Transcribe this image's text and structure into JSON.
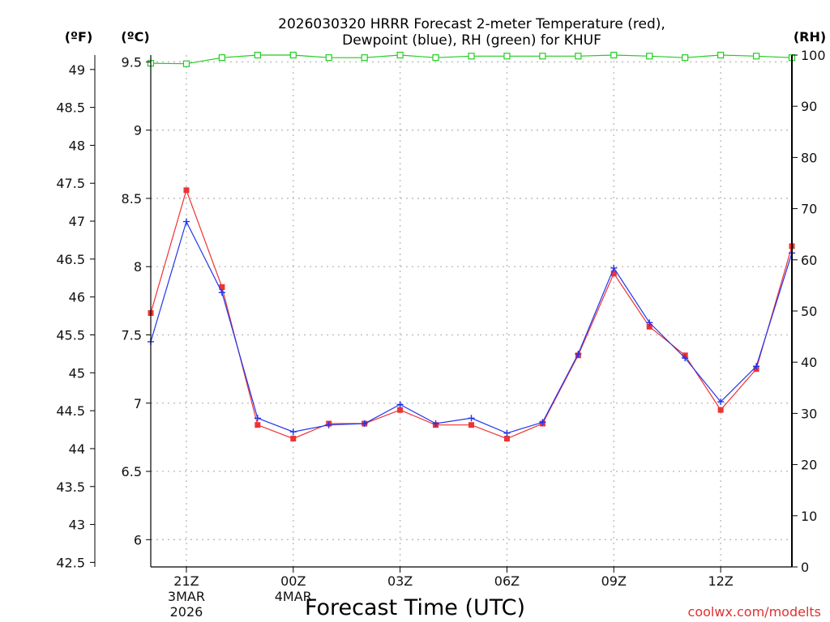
{
  "chart_data": {
    "type": "line",
    "title_line1": "2026030320 HRRR Forecast 2-meter Temperature (red),",
    "title_line2": "Dewpoint (blue), RH (green) for KHUF",
    "xlabel": "Forecast Time (UTC)",
    "credit": "coolwx.com/modelts",
    "unit_f": "(ºF)",
    "unit_c": "(ºC)",
    "unit_rh": "(RH)",
    "hours": [
      0,
      1,
      2,
      3,
      4,
      5,
      6,
      7,
      8,
      9,
      10,
      11,
      12,
      13,
      14,
      15,
      16,
      17,
      18
    ],
    "x_ticks": [
      {
        "h": 1,
        "label": "21Z",
        "sub1": "3MAR",
        "sub2": "2026"
      },
      {
        "h": 4,
        "label": "00Z",
        "sub1": "4MAR",
        "sub2": ""
      },
      {
        "h": 7,
        "label": "03Z",
        "sub1": "",
        "sub2": ""
      },
      {
        "h": 10,
        "label": "06Z",
        "sub1": "",
        "sub2": ""
      },
      {
        "h": 13,
        "label": "09Z",
        "sub1": "",
        "sub2": ""
      },
      {
        "h": 16,
        "label": "12Z",
        "sub1": "",
        "sub2": ""
      }
    ],
    "c_range": [
      5.8,
      9.55
    ],
    "c_ticks": [
      "6",
      "6.5",
      "7",
      "7.5",
      "8",
      "8.5",
      "9",
      "9.5"
    ],
    "f_ticks": [
      "42.5",
      "43",
      "43.5",
      "44",
      "44.5",
      "45",
      "45.5",
      "46",
      "46.5",
      "47",
      "47.5",
      "48",
      "48.5",
      "49"
    ],
    "rh_range": [
      0,
      100
    ],
    "rh_ticks": [
      "0",
      "10",
      "20",
      "30",
      "40",
      "50",
      "60",
      "70",
      "80",
      "90",
      "100"
    ],
    "series": [
      {
        "name": "Temperature",
        "color": "#ee3333",
        "marker": "square",
        "values": [
          7.66,
          8.56,
          7.85,
          6.84,
          6.74,
          6.85,
          6.85,
          6.95,
          6.84,
          6.84,
          6.74,
          6.85,
          7.35,
          7.95,
          7.56,
          7.35,
          6.95,
          7.25,
          8.15
        ]
      },
      {
        "name": "Dewpoint",
        "color": "#2233ee",
        "marker": "plus",
        "values": [
          7.45,
          8.33,
          7.81,
          6.89,
          6.79,
          6.84,
          6.85,
          6.99,
          6.85,
          6.89,
          6.78,
          6.86,
          7.36,
          7.99,
          7.59,
          7.33,
          7.01,
          7.27,
          8.1
        ]
      },
      {
        "name": "RH",
        "color": "#22cc22",
        "marker": "open-square",
        "values": [
          98.4,
          98.3,
          99.5,
          100,
          100,
          99.5,
          99.5,
          100,
          99.5,
          99.8,
          99.8,
          99.8,
          99.8,
          100,
          99.8,
          99.5,
          100,
          99.8,
          99.5
        ]
      }
    ]
  }
}
